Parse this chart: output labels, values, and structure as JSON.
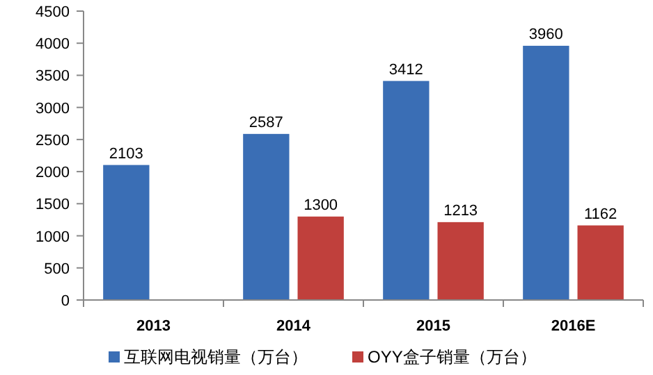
{
  "chart_data": {
    "type": "bar",
    "categories": [
      "2013",
      "2014",
      "2015",
      "2016E"
    ],
    "series": [
      {
        "name": "互联网电视销量（万台）",
        "color": "#3a6eb5",
        "values": [
          2103,
          2587,
          3412,
          3960
        ]
      },
      {
        "name": "OYY盒子销量（万台）",
        "color": "#c0403c",
        "values": [
          null,
          1300,
          1213,
          1162
        ]
      }
    ],
    "ylim": [
      0,
      4500
    ],
    "yticks": [
      0,
      500,
      1000,
      1500,
      2000,
      2500,
      3000,
      3500,
      4000,
      4500
    ],
    "data_labels": true,
    "grid": false,
    "legend": "bottom"
  }
}
